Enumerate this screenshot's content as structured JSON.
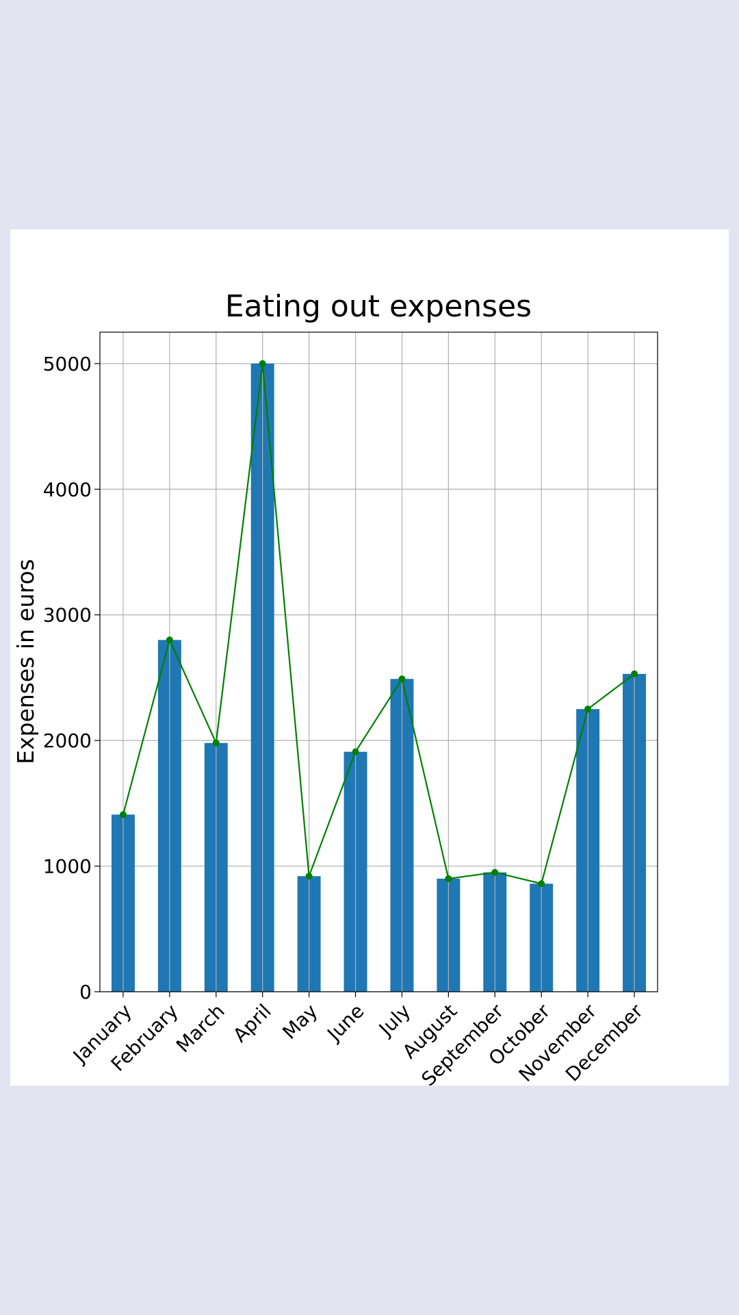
{
  "chart_data": {
    "type": "bar",
    "title": "Eating out expenses",
    "xlabel": "",
    "ylabel": "Expenses in euros",
    "categories": [
      "January",
      "February",
      "March",
      "April",
      "May",
      "June",
      "July",
      "August",
      "September",
      "October",
      "November",
      "December"
    ],
    "values": [
      1410,
      2800,
      1980,
      5000,
      920,
      1910,
      2490,
      900,
      950,
      860,
      2250,
      2530
    ],
    "line_overlay": {
      "values": [
        1410,
        2800,
        1980,
        5000,
        920,
        1910,
        2490,
        900,
        950,
        860,
        2250,
        2530
      ],
      "color": "#008000"
    },
    "ylim": [
      0,
      5250
    ],
    "yticks": [
      0,
      1000,
      2000,
      3000,
      4000,
      5000
    ],
    "grid": true,
    "bar_color": "#1f77b4",
    "background_color": "#e3e3f1"
  }
}
